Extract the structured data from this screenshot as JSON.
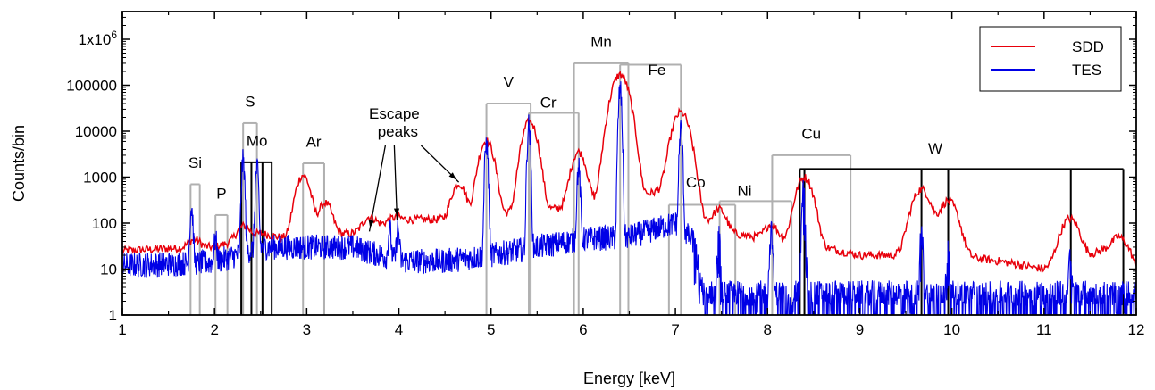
{
  "chart_data": {
    "type": "line",
    "xlabel": "Energy [keV]",
    "ylabel": "Counts/bin",
    "xlim": [
      1,
      12
    ],
    "ylim": [
      1,
      4000000
    ],
    "yscale": "log",
    "x_ticks": [
      1,
      2,
      3,
      4,
      5,
      6,
      7,
      8,
      9,
      10,
      11,
      12
    ],
    "y_ticks": [
      {
        "value": 1,
        "label": "1"
      },
      {
        "value": 10,
        "label": "10"
      },
      {
        "value": 100,
        "label": "100"
      },
      {
        "value": 1000,
        "label": "1000"
      },
      {
        "value": 10000,
        "label": "10000"
      },
      {
        "value": 100000,
        "label": "100000"
      },
      {
        "value": 1000000,
        "label": "1x10",
        "sup": "6"
      }
    ],
    "legend": {
      "position": "top-right",
      "entries": [
        {
          "name": "SDD",
          "color": "#e8000b"
        },
        {
          "name": "TES",
          "color": "#0000e6"
        }
      ]
    },
    "series": [
      {
        "name": "SDD",
        "color": "#e8000b",
        "baseline": [
          [
            1.0,
            25
          ],
          [
            1.5,
            28
          ],
          [
            2.0,
            30
          ],
          [
            2.5,
            60
          ],
          [
            2.8,
            45
          ],
          [
            3.5,
            60
          ],
          [
            4.0,
            120
          ],
          [
            4.5,
            120
          ],
          [
            5.0,
            150
          ],
          [
            5.5,
            180
          ],
          [
            6.0,
            250
          ],
          [
            6.5,
            350
          ],
          [
            7.0,
            600
          ],
          [
            7.2,
            150
          ],
          [
            7.6,
            60
          ],
          [
            8.0,
            45
          ],
          [
            8.6,
            30
          ],
          [
            9.0,
            20
          ],
          [
            9.5,
            20
          ],
          [
            10.0,
            20
          ],
          [
            10.5,
            15
          ],
          [
            11.0,
            10
          ],
          [
            11.5,
            20
          ],
          [
            11.8,
            35
          ],
          [
            12.0,
            8
          ]
        ],
        "peaks": [
          {
            "x": 1.78,
            "height": 15,
            "width": 0.06
          },
          {
            "x": 2.31,
            "height": 40,
            "width": 0.06
          },
          {
            "x": 2.96,
            "height": 1050,
            "width": 0.06
          },
          {
            "x": 3.2,
            "height": 220,
            "width": 0.06
          },
          {
            "x": 3.68,
            "height": 60,
            "width": 0.06
          },
          {
            "x": 3.95,
            "height": 20,
            "width": 0.06
          },
          {
            "x": 4.65,
            "height": 600,
            "width": 0.06
          },
          {
            "x": 4.95,
            "height": 6000,
            "width": 0.06
          },
          {
            "x": 5.42,
            "height": 16000,
            "width": 0.06
          },
          {
            "x": 5.95,
            "height": 3300,
            "width": 0.06
          },
          {
            "x": 6.4,
            "height": 170000,
            "width": 0.07
          },
          {
            "x": 7.06,
            "height": 25000,
            "width": 0.07
          },
          {
            "x": 7.48,
            "height": 120,
            "width": 0.06
          },
          {
            "x": 8.04,
            "height": 50,
            "width": 0.06
          },
          {
            "x": 8.4,
            "height": 950,
            "width": 0.07
          },
          {
            "x": 9.67,
            "height": 520,
            "width": 0.08
          },
          {
            "x": 9.96,
            "height": 280,
            "width": 0.08
          },
          {
            "x": 11.28,
            "height": 110,
            "width": 0.08
          },
          {
            "x": 11.85,
            "height": 20,
            "width": 0.08
          }
        ]
      },
      {
        "name": "TES",
        "color": "#0000e6",
        "baseline": [
          [
            1.0,
            12
          ],
          [
            2.0,
            14
          ],
          [
            2.5,
            30
          ],
          [
            3.0,
            30
          ],
          [
            3.5,
            30
          ],
          [
            4.0,
            15
          ],
          [
            4.5,
            15
          ],
          [
            5.0,
            20
          ],
          [
            5.5,
            30
          ],
          [
            6.0,
            45
          ],
          [
            6.5,
            50
          ],
          [
            7.0,
            100
          ],
          [
            7.2,
            40
          ],
          [
            7.3,
            3
          ],
          [
            8.0,
            3
          ],
          [
            10.0,
            3
          ],
          [
            12.0,
            3
          ]
        ],
        "peaks": [
          {
            "x": 1.75,
            "height": 200,
            "width": 0.012
          },
          {
            "x": 2.01,
            "height": 30,
            "width": 0.012
          },
          {
            "x": 2.31,
            "height": 2200,
            "width": 0.012
          },
          {
            "x": 2.46,
            "height": 1500,
            "width": 0.012
          },
          {
            "x": 3.9,
            "height": 60,
            "width": 0.012
          },
          {
            "x": 3.99,
            "height": 60,
            "width": 0.012
          },
          {
            "x": 4.95,
            "height": 5500,
            "width": 0.012
          },
          {
            "x": 5.41,
            "height": 13000,
            "width": 0.012
          },
          {
            "x": 5.95,
            "height": 1500,
            "width": 0.012
          },
          {
            "x": 6.4,
            "height": 80000,
            "width": 0.012
          },
          {
            "x": 7.06,
            "height": 11000,
            "width": 0.012
          },
          {
            "x": 7.47,
            "height": 50,
            "width": 0.012
          },
          {
            "x": 8.04,
            "height": 60,
            "width": 0.012
          },
          {
            "x": 8.39,
            "height": 500,
            "width": 0.012
          },
          {
            "x": 9.67,
            "height": 60,
            "width": 0.012
          },
          {
            "x": 9.96,
            "height": 30,
            "width": 0.012
          },
          {
            "x": 11.28,
            "height": 15,
            "width": 0.012
          }
        ]
      }
    ],
    "element_markers": [
      {
        "label": "Si",
        "color": "#b0b0b0",
        "x_left": 1.74,
        "x_right": 1.84,
        "top": 700
      },
      {
        "label": "P",
        "color": "#b0b0b0",
        "x_left": 2.01,
        "x_right": 2.14,
        "top": 150
      },
      {
        "label": "S",
        "color": "#b0b0b0",
        "x_left": 2.31,
        "x_right": 2.46,
        "top": 15000
      },
      {
        "label": "Mo",
        "color": "#000000",
        "x_left": 2.29,
        "x_right": 2.62,
        "top": 2100,
        "lines": [
          2.29,
          2.4,
          2.52,
          2.62
        ]
      },
      {
        "label": "Ar",
        "color": "#b0b0b0",
        "x_left": 2.96,
        "x_right": 3.19,
        "top": 2000
      },
      {
        "label": "V",
        "color": "#b0b0b0",
        "x_left": 4.95,
        "x_right": 5.43,
        "top": 40000
      },
      {
        "label": "Cr",
        "color": "#b0b0b0",
        "x_left": 5.41,
        "x_right": 5.95,
        "top": 25000
      },
      {
        "label": "Mn",
        "color": "#b0b0b0",
        "x_left": 5.9,
        "x_right": 6.49,
        "top": 300000
      },
      {
        "label": "Fe",
        "color": "#b0b0b0",
        "x_left": 6.4,
        "x_right": 7.06,
        "top": 280000
      },
      {
        "label": "Co",
        "color": "#b0b0b0",
        "x_left": 6.93,
        "x_right": 7.65,
        "top": 250
      },
      {
        "label": "Ni",
        "color": "#b0b0b0",
        "x_left": 7.48,
        "x_right": 8.26,
        "top": 300
      },
      {
        "label": "Cu",
        "color": "#b0b0b0",
        "x_left": 8.05,
        "x_right": 8.9,
        "top": 3000
      },
      {
        "label": "W",
        "color": "#000000",
        "x_left": 8.35,
        "x_right": 11.86,
        "top": 1500,
        "lines": [
          8.35,
          8.4,
          9.67,
          9.96,
          11.29,
          11.86
        ]
      }
    ],
    "annotations": [
      {
        "text": [
          "Escape",
          "peaks"
        ],
        "arrows_to": [
          [
            3.68,
            55
          ],
          [
            3.98,
            100
          ],
          [
            4.65,
            650
          ]
        ]
      }
    ]
  }
}
